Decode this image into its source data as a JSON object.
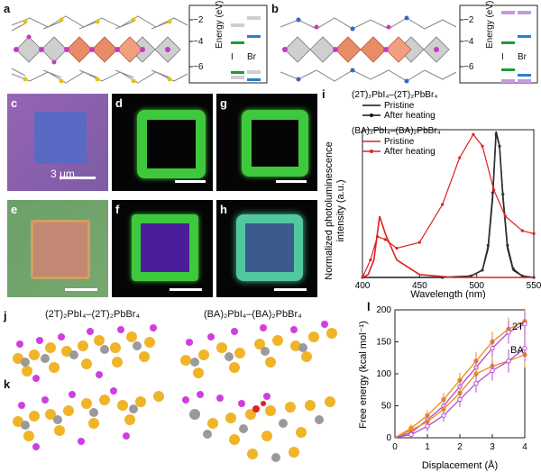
{
  "panels": {
    "a": {
      "label": "a",
      "ylabel": "Energy (eV)",
      "ticks": [
        "−2",
        "−4",
        "−6"
      ],
      "cols": [
        "I",
        "Br"
      ]
    },
    "b": {
      "label": "b",
      "ylabel": "Energy (eV)",
      "ticks": [
        "−2",
        "−4",
        "−6"
      ],
      "cols": [
        "I",
        "Br"
      ]
    },
    "c": {
      "label": "c",
      "scalebar": "3 μm"
    },
    "d": {
      "label": "d"
    },
    "e": {
      "label": "e"
    },
    "f": {
      "label": "f"
    },
    "g": {
      "label": "g"
    },
    "h": {
      "label": "h"
    },
    "i": {
      "label": "i"
    },
    "j": {
      "label": "j",
      "left": "(2T)₂PbI₄–(2T)₂PbBr₄",
      "right": "(BA)₂PbI₄–(BA)₂PbBr₄"
    },
    "k": {
      "label": "k"
    },
    "l": {
      "label": "l"
    }
  },
  "colors": {
    "iodide_green": "#1a9a3a",
    "bromide_blue": "#2a7fd0",
    "ba_purple": "#9b59c6",
    "pb_gray": "#9a9a9a",
    "yellow": "#f0b428",
    "magenta": "#cf3fe0",
    "red": "#e02020",
    "orange": "#f08a1c"
  },
  "chart_data": [
    {
      "type": "line",
      "title": "",
      "xlabel": "Wavelength (nm)",
      "ylabel": "Normalized photoluminescence intensity (a.u.)",
      "xlim": [
        400,
        550
      ],
      "xticks": [
        400,
        450,
        500,
        550
      ],
      "legend": [
        {
          "group": "(2T)₂PbI₄–(2T)₂PbBr₄",
          "items": [
            "Pristine",
            "After heating"
          ]
        },
        {
          "group": "(BA)₂PbI₄–(BA)₂PbBr₄",
          "items": [
            "Pristine",
            "After heating"
          ]
        }
      ],
      "series": [
        {
          "name": "2T Pristine",
          "x": [
            400,
            470,
            495,
            505,
            510,
            514,
            517,
            520,
            523,
            527,
            532,
            540,
            550
          ],
          "values": [
            0,
            0,
            0.01,
            0.05,
            0.2,
            0.55,
            1.0,
            0.9,
            0.55,
            0.2,
            0.05,
            0.01,
            0
          ]
        },
        {
          "name": "2T After heating",
          "x": [
            400,
            470,
            495,
            505,
            510,
            514,
            517,
            520,
            523,
            527,
            532,
            540,
            550
          ],
          "values": [
            0,
            0,
            0.01,
            0.05,
            0.22,
            0.58,
            0.98,
            0.9,
            0.57,
            0.22,
            0.06,
            0.01,
            0
          ]
        },
        {
          "name": "BA Pristine",
          "x": [
            400,
            405,
            410,
            415,
            420,
            430,
            450,
            480,
            495,
            505,
            512,
            520,
            530,
            550
          ],
          "values": [
            0,
            0.02,
            0.12,
            0.42,
            0.3,
            0.12,
            0.02,
            0,
            0,
            0,
            0,
            0,
            0,
            0
          ]
        },
        {
          "name": "BA After heating",
          "x": [
            400,
            407,
            413,
            420,
            430,
            450,
            470,
            485,
            497,
            505,
            515,
            525,
            540,
            550
          ],
          "values": [
            0,
            0.12,
            0.28,
            0.26,
            0.2,
            0.24,
            0.5,
            0.82,
            0.98,
            0.9,
            0.6,
            0.42,
            0.32,
            0.3
          ]
        }
      ]
    },
    {
      "type": "line",
      "title": "",
      "xlabel": "Displacement (Å)",
      "ylabel": "Free energy (kcal mol⁻¹)",
      "xlim": [
        0,
        4
      ],
      "ylim": [
        0,
        200
      ],
      "xticks": [
        0,
        1,
        2,
        3,
        4
      ],
      "yticks": [
        0,
        50,
        100,
        150,
        200
      ],
      "labels": [
        "2T",
        "BA"
      ],
      "series": [
        {
          "name": "2T (orange)",
          "x": [
            0,
            0.5,
            1,
            1.5,
            2,
            2.5,
            3,
            3.5,
            4
          ],
          "values": [
            0,
            15,
            35,
            60,
            90,
            120,
            150,
            170,
            182
          ]
        },
        {
          "name": "2T (purple)",
          "x": [
            0,
            0.5,
            1,
            1.5,
            2,
            2.5,
            3,
            3.5,
            4
          ],
          "values": [
            0,
            8,
            28,
            50,
            80,
            110,
            140,
            165,
            178
          ]
        },
        {
          "name": "BA (orange)",
          "x": [
            0,
            0.5,
            1,
            1.5,
            2,
            2.5,
            3,
            3.5,
            4
          ],
          "values": [
            0,
            12,
            25,
            45,
            70,
            100,
            112,
            120,
            130
          ]
        },
        {
          "name": "BA (purple)",
          "x": [
            0,
            0.5,
            1,
            1.5,
            2,
            2.5,
            3,
            3.5,
            4
          ],
          "values": [
            0,
            5,
            18,
            35,
            60,
            85,
            105,
            120,
            140
          ]
        }
      ]
    }
  ]
}
